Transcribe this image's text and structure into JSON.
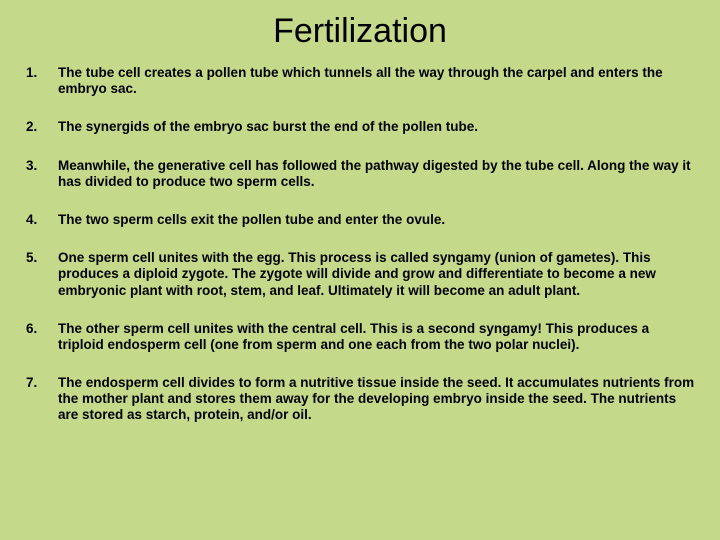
{
  "title": "Fertilization",
  "items": [
    "The tube cell creates a pollen tube which tunnels all the way through the carpel and enters the embryo sac.",
    "The synergids of the embryo sac burst the end of the pollen tube.",
    "Meanwhile, the generative cell has followed the pathway digested by the tube cell. Along the way it has divided to produce two sperm cells.",
    "The two sperm cells exit the pollen tube and enter the ovule.",
    "One sperm cell unites with the egg. This process is called syngamy (union of gametes). This produces a diploid zygote. The zygote will divide and grow and differentiate to become a new embryonic plant with root, stem, and leaf. Ultimately it will become an adult plant.",
    "The other sperm cell unites with the central cell. This is a second syngamy! This produces a triploid endosperm cell (one from sperm and one each from the two polar nuclei).",
    "The endosperm cell divides to form a nutritive tissue inside the seed. It accumulates nutrients from the mother plant and stores them away for the developing embryo inside the seed. The nutrients are stored as starch, protein, and/or oil."
  ],
  "colors": {
    "background": "#c5d98b",
    "text": "#000000"
  },
  "typography": {
    "title_fontsize": 34,
    "title_weight": "normal",
    "body_fontsize": 13.5,
    "body_weight": "bold",
    "font_family": "Arial"
  }
}
